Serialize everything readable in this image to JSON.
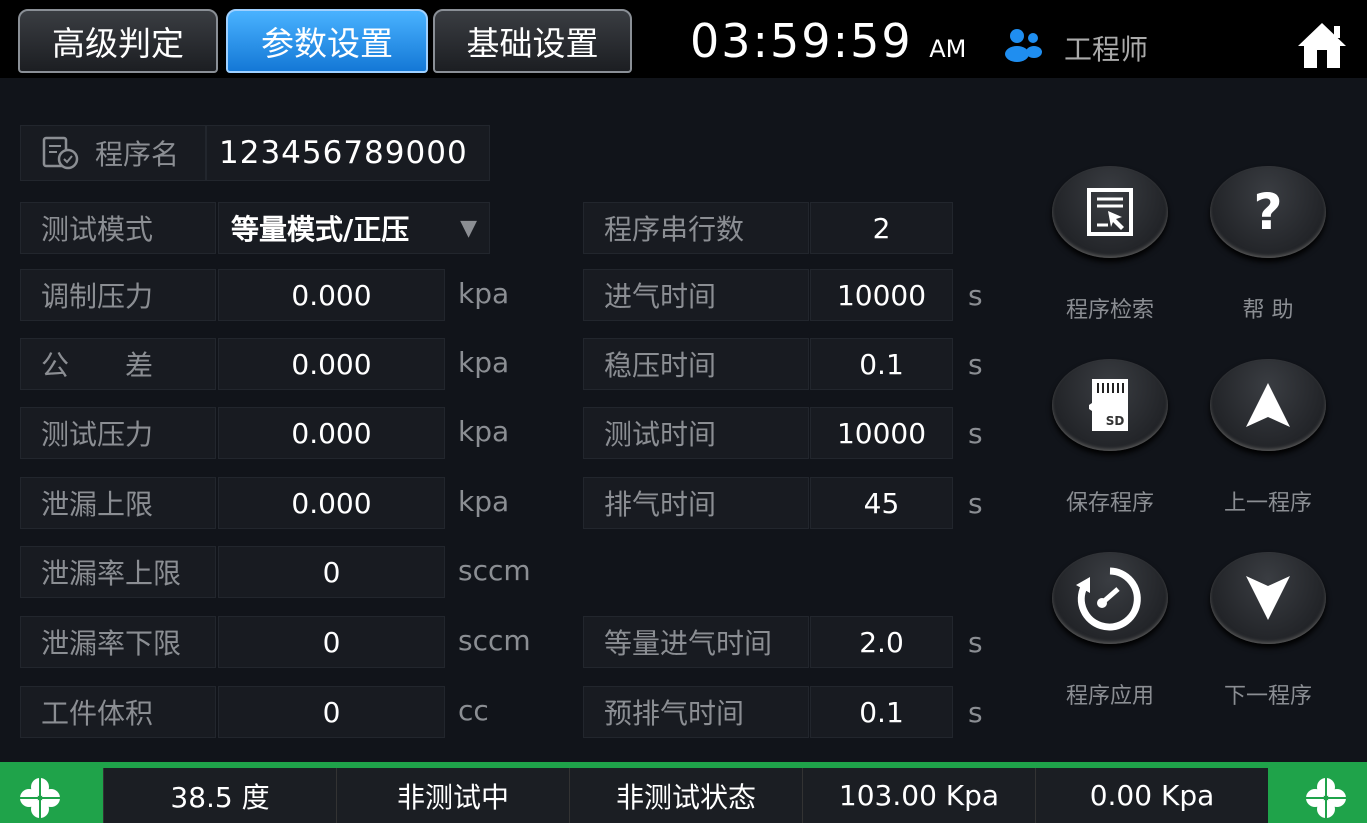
{
  "tabs": [
    {
      "label": "高级判定",
      "active": false
    },
    {
      "label": "参数设置",
      "active": true
    },
    {
      "label": "基础设置",
      "active": false
    }
  ],
  "clock": {
    "time": "03:59:59",
    "ampm": "AM"
  },
  "user": {
    "role": "工程师",
    "icon": "users-icon"
  },
  "program": {
    "label": "程序名",
    "value": "123456789000",
    "icon": "document-check-icon"
  },
  "left_fields": [
    {
      "label": "测试模式",
      "value": "等量模式/正压",
      "unit": "",
      "dropdown": true
    },
    {
      "label": "调制压力",
      "value": "0.000",
      "unit": "kpa"
    },
    {
      "label": "公　　差",
      "value": "0.000",
      "unit": "kpa"
    },
    {
      "label": "测试压力",
      "value": "0.000",
      "unit": "kpa"
    },
    {
      "label": "泄漏上限",
      "value": "0.000",
      "unit": "kpa"
    },
    {
      "label": "泄漏率上限",
      "value": "0",
      "unit": "sccm"
    },
    {
      "label": "泄漏率下限",
      "value": "0",
      "unit": "sccm"
    },
    {
      "label": "工件体积",
      "value": "0",
      "unit": "cc"
    }
  ],
  "right_fields": [
    {
      "label": "程序串行数",
      "value": "2",
      "unit": "",
      "row": 0
    },
    {
      "label": "进气时间",
      "value": "10000",
      "unit": "s",
      "row": 1
    },
    {
      "label": "稳压时间",
      "value": "0.1",
      "unit": "s",
      "row": 2
    },
    {
      "label": "测试时间",
      "value": "10000",
      "unit": "s",
      "row": 3
    },
    {
      "label": "排气时间",
      "value": "45",
      "unit": "s",
      "row": 4
    },
    {
      "label": "等量进气时间",
      "value": "2.0",
      "unit": "s",
      "row": 6
    },
    {
      "label": "预排气时间",
      "value": "0.1",
      "unit": "s",
      "row": 7
    }
  ],
  "buttons": [
    {
      "label": "程序检索",
      "icon": "program-search-icon"
    },
    {
      "label": "帮  助",
      "icon": "help-icon"
    },
    {
      "label": "保存程序",
      "icon": "sd-card-icon"
    },
    {
      "label": "上一程序",
      "icon": "arrow-up-icon"
    },
    {
      "label": "程序应用",
      "icon": "gauge-icon"
    },
    {
      "label": "下一程序",
      "icon": "arrow-down-icon"
    }
  ],
  "status": [
    "38.5 度",
    "非测试中",
    "非测试状态",
    "103.00 Kpa",
    "0.00 Kpa"
  ],
  "colors": {
    "accent": "#1f8ef0",
    "status_green": "#1fa34a",
    "background": "#11141a"
  }
}
